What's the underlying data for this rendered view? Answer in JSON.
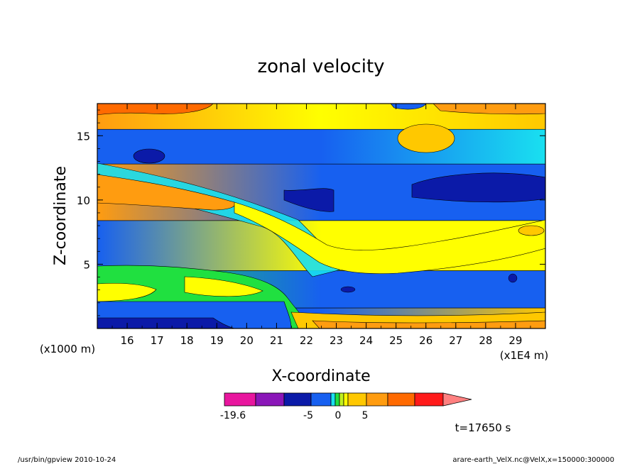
{
  "chart_data": {
    "type": "heatmap",
    "title": "zonal velocity",
    "xlabel": "X-coordinate",
    "ylabel": "Z-coordinate",
    "x_unit": "(x1E4 m)",
    "y_unit": "(x1000 m)",
    "xlim": [
      15.0,
      30.0
    ],
    "ylim": [
      0.0,
      17.5
    ],
    "x_ticks": [
      "16",
      "17",
      "18",
      "19",
      "20",
      "21",
      "22",
      "23",
      "24",
      "25",
      "26",
      "27",
      "28",
      "29"
    ],
    "y_ticks": [
      "5",
      "10",
      "15"
    ],
    "x_tick_values": [
      16,
      17,
      18,
      19,
      20,
      21,
      22,
      23,
      24,
      25,
      26,
      27,
      28,
      29
    ],
    "y_tick_values": [
      5,
      10,
      15
    ],
    "colorbar": {
      "colors": [
        "#e8169e",
        "#8a16b8",
        "#0b1aa8",
        "#1760f0",
        "#19e0f0",
        "#20e040",
        "#c0f020",
        "#ffff00",
        "#ffc800",
        "#ff9c10",
        "#ff6a00",
        "#ff1a1a",
        "#ff8080"
      ],
      "widths": [
        44,
        40,
        38,
        28,
        6,
        6,
        6,
        6,
        26,
        30,
        38,
        40
      ],
      "labels": [
        "-19.6",
        "-5",
        "0",
        "5"
      ],
      "label_values": [
        -19.6,
        -5,
        0,
        5
      ]
    },
    "bands": [
      {
        "name": "b1",
        "y_start": 0.0,
        "y_end": 1.6,
        "left": "#0b1aa8",
        "mid": "#1760f0",
        "right": "#ffc800"
      },
      {
        "name": "b2",
        "y_start": 1.6,
        "y_end": 4.5,
        "left": "#20e040",
        "mid": "#1760f0",
        "right": "#1760f0"
      },
      {
        "name": "b3",
        "y_start": 4.5,
        "y_end": 8.4,
        "left": "#1760f0",
        "mid": "#ffff00",
        "right": "#ffff00"
      },
      {
        "name": "b4",
        "y_start": 8.4,
        "y_end": 12.8,
        "left": "#ff9c10",
        "mid": "#1760f0",
        "right": "#1760f0"
      },
      {
        "name": "b5",
        "y_start": 12.8,
        "y_end": 15.5,
        "left": "#1760f0",
        "mid": "#1760f0",
        "right": "#19e0f0"
      },
      {
        "name": "b6",
        "y_start": 15.5,
        "y_end": 17.5,
        "left": "#ff9c10",
        "mid": "#ffff00",
        "right": "#ffc800"
      }
    ],
    "time_label": "t=17650 s"
  },
  "footer": {
    "left": "/usr/bin/gpview   2010-10-24",
    "right": "arare-earth_VelX.nc@VelX,x=150000:300000"
  }
}
